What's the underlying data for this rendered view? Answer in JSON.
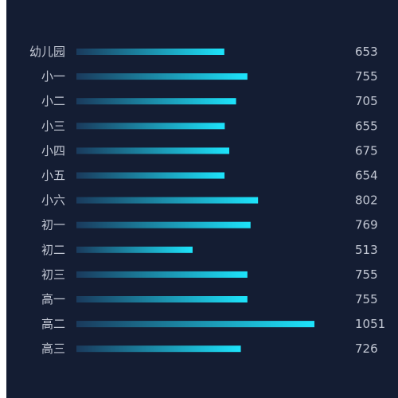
{
  "chart_data": {
    "type": "bar",
    "orientation": "horizontal",
    "categories": [
      "幼儿园",
      "小一",
      "小二",
      "小三",
      "小四",
      "小五",
      "小六",
      "初一",
      "初二",
      "初三",
      "高一",
      "高二",
      "高三"
    ],
    "values": [
      653,
      755,
      705,
      655,
      675,
      654,
      802,
      769,
      513,
      755,
      755,
      1051,
      726
    ],
    "xlim": [
      0,
      1051
    ],
    "grid": false,
    "legend": false,
    "colors": {
      "background": "#141d33",
      "bar_start": "#1a3a5c",
      "bar_end": "#1de4fb",
      "text": "#c3c8d4"
    }
  }
}
